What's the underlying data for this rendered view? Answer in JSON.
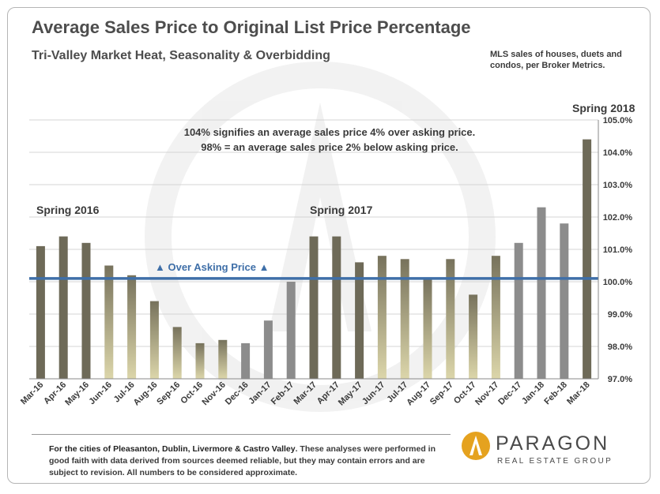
{
  "header": {
    "title": "Average Sales Price to Original List Price Percentage",
    "subtitle": "Tri-Valley  Market Heat, Seasonality & Overbidding",
    "note": "MLS sales of houses, duets and condos,  per Broker Metrics."
  },
  "chart_data": {
    "type": "bar",
    "categories": [
      "Mar-16",
      "Apr-16",
      "May-16",
      "Jun-16",
      "Jul-16",
      "Aug-16",
      "Sep-16",
      "Oct-16",
      "Nov-16",
      "Dec-16",
      "Jan-17",
      "Feb-17",
      "Mar-17",
      "Apr-17",
      "May-17",
      "Jun-17",
      "Jul-17",
      "Aug-17",
      "Sep-17",
      "Oct-17",
      "Nov-17",
      "Dec-17",
      "Jan-18",
      "Feb-18",
      "Mar-18"
    ],
    "values": [
      101.1,
      101.4,
      101.2,
      100.5,
      100.2,
      99.4,
      98.6,
      98.1,
      98.2,
      98.1,
      98.8,
      100.0,
      101.4,
      101.4,
      100.6,
      100.8,
      100.7,
      100.1,
      100.7,
      99.6,
      100.8,
      101.2,
      102.3,
      101.8,
      104.4
    ],
    "ylim": [
      97.0,
      105.0
    ],
    "yticks": [
      97.0,
      98.0,
      99.0,
      100.0,
      101.0,
      102.0,
      103.0,
      104.0,
      105.0
    ],
    "ytick_labels": [
      "97.0%",
      "98.0%",
      "99.0%",
      "100.0%",
      "101.0%",
      "102.0%",
      "103.0%",
      "104.0%",
      "105.0%"
    ],
    "grid": true,
    "reference_line": {
      "value": 100.1,
      "label": "▲ Over Asking Price ▲",
      "color": "#3f6fa8"
    },
    "bar_styles": {
      "spring": {
        "top": "#6e6a58",
        "bottom": "#6e6a58"
      },
      "summer_fall": {
        "top": "#77725c",
        "bottom": "#dcd6aa"
      },
      "winter": {
        "top": "#8c8c8c",
        "bottom": "#8c8c8c"
      }
    },
    "bar_style_by_index": [
      "spring",
      "spring",
      "spring",
      "summer_fall",
      "summer_fall",
      "summer_fall",
      "summer_fall",
      "summer_fall",
      "summer_fall",
      "winter",
      "winter",
      "winter",
      "spring",
      "spring",
      "spring",
      "summer_fall",
      "summer_fall",
      "summer_fall",
      "summer_fall",
      "summer_fall",
      "summer_fall",
      "winter",
      "winter",
      "winter",
      "spring"
    ],
    "annotations": {
      "spring_2016": "Spring 2016",
      "spring_2017": "Spring 2017",
      "spring_2018": "Spring 2018",
      "note_line1": "104% signifies  an average sales  price 4% over asking price.",
      "note_line2": "98% = an average sales  price 2% below asking price."
    }
  },
  "footer": {
    "lead": "For the cities of Pleasanton, Dublin, Livermore & Castro Valley",
    "rest": ". These analyses were performed in good faith with data derived from sources deemed reliable, but they may contain errors and are subject to revision. All numbers to be considered  approximate."
  },
  "logo": {
    "name": "PARAGON",
    "tagline": "REAL ESTATE GROUP",
    "mark_color": "#e5a21f"
  }
}
